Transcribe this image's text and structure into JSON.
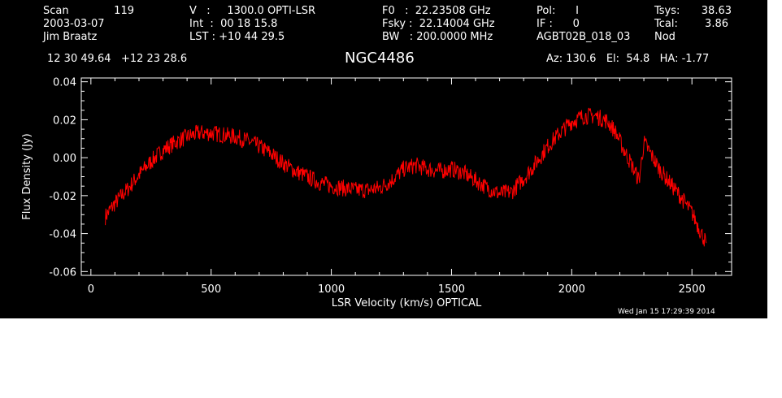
{
  "header": {
    "scan_label": "Scan",
    "scan_value": "119",
    "date": "2003-03-07",
    "observer": "Jim Braatz",
    "velocity": "V   :     1300.0 OPTI-LSR",
    "int_time": "Int  :  00 18 15.8",
    "lst": "LST : +10 44 29.5",
    "f0": "F0   :  22.23508 GHz",
    "fsky": "Fsky :  22.14004 GHz",
    "bw": "BW   : 200.0000 MHz",
    "pol": "Pol:      I",
    "if": "IF :      0",
    "project": "AGBT02B_018_03",
    "tsys_label": "Tsys:",
    "tsys_value": "38.63",
    "tcal_label": "Tcal:",
    "tcal_value": "3.86",
    "mode": "Nod",
    "coords": "12 30 49.64   +12 23 28.6",
    "source": "NGC4486",
    "pointing": "Az: 130.6   El:  54.8   HA: -1.77",
    "timestamp": "Wed Jan 15 17:29:39 2014"
  },
  "chart_data": {
    "type": "line",
    "xlabel": "LSR Velocity (km/s) OPTICAL",
    "ylabel": "Flux Density (Jy)",
    "xlim": [
      -40,
      2665
    ],
    "ylim": [
      -0.062,
      0.042
    ],
    "x_ticks": [
      0,
      500,
      1000,
      1500,
      2000,
      2500
    ],
    "x_tick_labels": [
      "0",
      "500",
      "1000",
      "1500",
      "2000",
      "2500"
    ],
    "y_ticks": [
      -0.06,
      -0.04,
      -0.02,
      0.0,
      0.02,
      0.04
    ],
    "y_tick_labels": [
      "-0.06",
      "-0.04",
      "-0.02",
      "0.00",
      "0.02",
      "0.04"
    ],
    "series_color": "#ff0000",
    "axis_color": "#ffffff",
    "background": "#000000",
    "grid": false,
    "series": [
      {
        "x": [
          60,
          100,
          150,
          200,
          250,
          300,
          350,
          400,
          450,
          500,
          550,
          600,
          650,
          700,
          750,
          800,
          850,
          900,
          950,
          1000,
          1050,
          1100,
          1150,
          1200,
          1250,
          1300,
          1350,
          1400,
          1450,
          1500,
          1550,
          1600,
          1650,
          1700,
          1750,
          1800,
          1850,
          1900,
          1950,
          2000,
          2050,
          2100,
          2150,
          2180,
          2210,
          2250,
          2280,
          2300,
          2320,
          2360,
          2400,
          2450,
          2500,
          2540,
          2560
        ],
        "values": [
          -0.031,
          -0.024,
          -0.017,
          -0.009,
          -0.002,
          0.004,
          0.008,
          0.011,
          0.013,
          0.013,
          0.012,
          0.011,
          0.009,
          0.006,
          0.002,
          -0.003,
          -0.007,
          -0.01,
          -0.013,
          -0.015,
          -0.016,
          -0.017,
          -0.017,
          -0.016,
          -0.012,
          -0.006,
          -0.004,
          -0.006,
          -0.007,
          -0.006,
          -0.008,
          -0.012,
          -0.016,
          -0.019,
          -0.018,
          -0.011,
          -0.003,
          0.006,
          0.013,
          0.019,
          0.022,
          0.022,
          0.019,
          0.014,
          0.006,
          -0.004,
          -0.012,
          0.008,
          0.004,
          -0.005,
          -0.012,
          -0.02,
          -0.029,
          -0.04,
          -0.045
        ]
      }
    ]
  }
}
